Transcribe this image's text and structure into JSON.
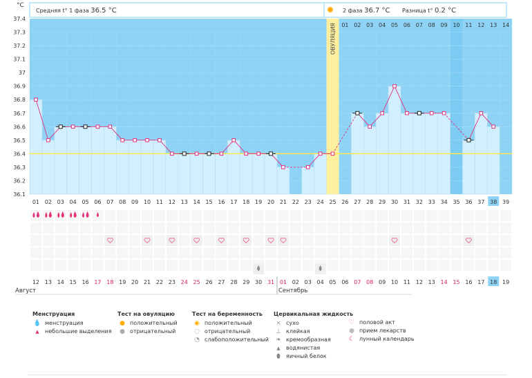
{
  "header": {
    "unit": "°C",
    "phase1_label": "Средняя t° 1 фаза",
    "phase1_value": "36.5 °C",
    "phase2_label": "2 фаза",
    "phase2_value": "36.7 °C",
    "diff_label": "Разница t°",
    "diff_value": "0.2 °C"
  },
  "colors": {
    "sky": "#8ed3f5",
    "bar": "#d2efff",
    "bar_border": "#b7dcef",
    "line": "#e3317a",
    "ovulation": "#fff0a0",
    "coverline": "#ffe94a",
    "highlight": "#8ed3f5",
    "red_date": "#d81e5b",
    "pink": "#e96d93",
    "cell": "#f6f6f6"
  },
  "chart_data": {
    "type": "bar",
    "title": "",
    "xlabel": "",
    "ylabel": "°C",
    "ylim": [
      36.1,
      37.4
    ],
    "y_ticks": [
      "36.1",
      "36.2",
      "36.3",
      "36.4",
      "36.5",
      "36.6",
      "36.7",
      "36.8",
      "36.9",
      "37",
      "37.1",
      "37.2",
      "37.3",
      "37.4"
    ],
    "cycle_days": [
      "01",
      "02",
      "03",
      "04",
      "05",
      "06",
      "07",
      "08",
      "09",
      "10",
      "11",
      "12",
      "13",
      "14",
      "15",
      "16",
      "17",
      "18",
      "19",
      "20",
      "21",
      "22",
      "23",
      "24",
      "25",
      "26",
      "27",
      "28",
      "29",
      "30",
      "31",
      "32",
      "33",
      "34",
      "35",
      "36",
      "37",
      "38",
      "39"
    ],
    "top_days": [
      "01",
      "02",
      "03",
      "04",
      "05",
      "06",
      "07",
      "08",
      "09",
      "10",
      "11",
      "12",
      "13",
      "14"
    ],
    "calendar_dates": [
      "12",
      "13",
      "14",
      "15",
      "16",
      "17",
      "18",
      "19",
      "20",
      "21",
      "22",
      "23",
      "24",
      "25",
      "26",
      "27",
      "28",
      "29",
      "30",
      "31",
      "01",
      "02",
      "03",
      "04",
      "05",
      "06",
      "07",
      "08",
      "09",
      "10",
      "11",
      "12",
      "13",
      "14",
      "15",
      "16",
      "17",
      "18",
      "19"
    ],
    "red_date_indices": [
      5,
      6,
      12,
      13,
      19,
      20,
      26,
      27,
      33,
      34
    ],
    "highlight_index": 37,
    "month_labels": [
      "Август",
      "Сентябрь"
    ],
    "ovulation_label": "ОВУЛЯЦИЯ",
    "ovulation_index": 24,
    "coverline": 36.4,
    "temperatures": [
      36.8,
      36.5,
      36.6,
      36.6,
      36.6,
      36.6,
      36.6,
      36.5,
      36.5,
      36.5,
      36.5,
      36.4,
      36.4,
      36.4,
      36.4,
      36.4,
      36.5,
      36.4,
      36.4,
      36.4,
      36.3,
      null,
      36.3,
      36.4,
      36.4,
      null,
      36.7,
      36.6,
      36.7,
      36.9,
      36.7,
      36.7,
      36.7,
      36.7,
      null,
      36.5,
      36.7,
      36.6,
      null
    ],
    "dashed_after": [
      20,
      24,
      33
    ],
    "black_marker_indices": [
      2,
      4,
      12,
      14,
      19,
      26,
      31,
      35
    ],
    "dark_bg_indices": [
      34
    ]
  },
  "rows": {
    "menstruation": [
      0,
      1,
      2,
      3,
      4,
      5
    ],
    "menstruation_small": [
      5
    ],
    "intercourse": [
      6,
      9,
      11,
      13,
      15,
      17,
      19,
      20,
      29,
      35
    ],
    "cervical_drop": [
      18,
      23
    ]
  },
  "legend": {
    "menstruation": {
      "title": "Менструация",
      "items": [
        {
          "icon": "drops-icon",
          "label": "менструация"
        },
        {
          "icon": "drop-small-icon",
          "label": "небольшие выделения"
        }
      ]
    },
    "ovulation_test": {
      "title": "Тест на овуляцию",
      "items": [
        {
          "icon": "sun-positive-icon",
          "label": "положительный"
        },
        {
          "icon": "sun-negative-icon",
          "label": "отрицательный"
        }
      ]
    },
    "pregnancy_test": {
      "title": "Тест на беременность",
      "items": [
        {
          "icon": "test-positive-icon",
          "label": "положительный"
        },
        {
          "icon": "test-negative-icon",
          "label": "отрицательный"
        },
        {
          "icon": "test-weak-icon",
          "label": "слабоположительный"
        }
      ]
    },
    "cervical": {
      "title": "Цервикальная жидкость",
      "items": [
        {
          "icon": "cross-icon",
          "label": "сухо"
        },
        {
          "icon": "sticky-icon",
          "label": "клейкая"
        },
        {
          "icon": "creamy-icon",
          "label": "кремообразная"
        },
        {
          "icon": "watery-icon",
          "label": "водянистая"
        },
        {
          "icon": "eggwhite-icon",
          "label": "яичный белок"
        }
      ]
    },
    "other": {
      "items": [
        {
          "icon": "heart-icon",
          "label": "половой акт"
        },
        {
          "icon": "pill-icon",
          "label": "прием лекарств"
        },
        {
          "icon": "moon-icon",
          "label": "лунный календарь"
        }
      ]
    }
  }
}
